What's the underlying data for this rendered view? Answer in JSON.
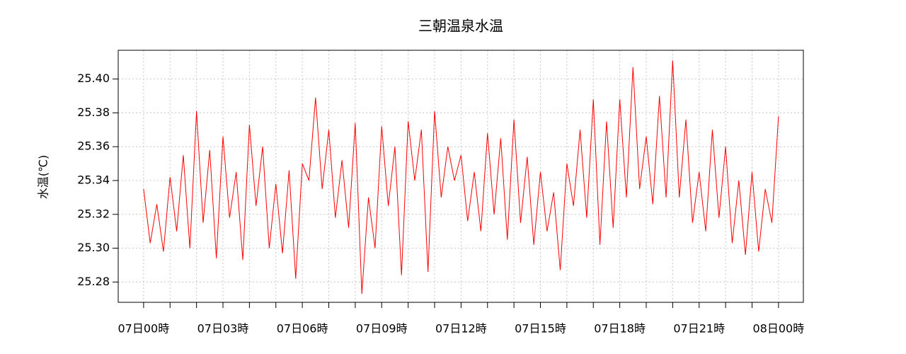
{
  "chart_data": {
    "type": "line",
    "title": "三朝温泉水温",
    "y_label": "水温(℃)",
    "x": [
      0,
      0.25,
      0.5,
      0.75,
      1,
      1.25,
      1.5,
      1.75,
      2,
      2.25,
      2.5,
      2.75,
      3,
      3.25,
      3.5,
      3.75,
      4,
      4.25,
      4.5,
      4.75,
      5,
      5.25,
      5.5,
      5.75,
      6,
      6.25,
      6.5,
      6.75,
      7,
      7.25,
      7.5,
      7.75,
      8,
      8.25,
      8.5,
      8.75,
      9,
      9.25,
      9.5,
      9.75,
      10,
      10.25,
      10.5,
      10.75,
      11,
      11.25,
      11.5,
      11.75,
      12,
      12.25,
      12.5,
      12.75,
      13,
      13.25,
      13.5,
      13.75,
      14,
      14.25,
      14.5,
      14.75,
      15,
      15.25,
      15.5,
      15.75,
      16,
      16.25,
      16.5,
      16.75,
      17,
      17.25,
      17.5,
      17.75,
      18,
      18.25,
      18.5,
      18.75,
      19,
      19.25,
      19.5,
      19.75,
      20,
      20.25,
      20.5,
      20.75,
      21,
      21.25,
      21.5,
      21.75,
      22,
      22.25,
      22.5,
      22.75,
      23,
      23.25,
      23.5,
      23.75,
      24
    ],
    "series": [
      {
        "name": "水温",
        "color": "#ff0000",
        "values": [
          25.335,
          25.303,
          25.326,
          25.298,
          25.342,
          25.31,
          25.355,
          25.3,
          25.381,
          25.315,
          25.358,
          25.294,
          25.366,
          25.318,
          25.345,
          25.293,
          25.373,
          25.325,
          25.36,
          25.3,
          25.338,
          25.297,
          25.346,
          25.282,
          25.35,
          25.34,
          25.389,
          25.335,
          25.37,
          25.318,
          25.352,
          25.312,
          25.374,
          25.273,
          25.33,
          25.3,
          25.372,
          25.325,
          25.36,
          25.284,
          25.375,
          25.34,
          25.37,
          25.286,
          25.381,
          25.33,
          25.36,
          25.34,
          25.355,
          25.316,
          25.345,
          25.31,
          25.368,
          25.32,
          25.365,
          25.305,
          25.376,
          25.315,
          25.354,
          25.302,
          25.345,
          25.31,
          25.333,
          25.287,
          25.35,
          25.325,
          25.37,
          25.318,
          25.388,
          25.302,
          25.375,
          25.312,
          25.388,
          25.33,
          25.407,
          25.335,
          25.366,
          25.326,
          25.39,
          25.33,
          25.411,
          25.33,
          25.376,
          25.315,
          25.345,
          25.31,
          25.37,
          25.318,
          25.36,
          25.303,
          25.34,
          25.296,
          25.345,
          25.298,
          25.335,
          25.315,
          25.378
        ]
      }
    ],
    "xlim": [
      -0.96,
      24.94
    ],
    "ylim": [
      25.268,
      25.417
    ],
    "xticks": [
      {
        "value": 0,
        "label": "07日00時"
      },
      {
        "value": 3,
        "label": "07日03時"
      },
      {
        "value": 6,
        "label": "07日06時"
      },
      {
        "value": 9,
        "label": "07日09時"
      },
      {
        "value": 12,
        "label": "07日12時"
      },
      {
        "value": 15,
        "label": "07日15時"
      },
      {
        "value": 18,
        "label": "07日18時"
      },
      {
        "value": 21,
        "label": "07日21時"
      },
      {
        "value": 24,
        "label": "08日00時"
      }
    ],
    "x_minor_ticks": [
      1,
      2,
      4,
      5,
      7,
      8,
      10,
      11,
      13,
      14,
      16,
      17,
      19,
      20,
      22,
      23
    ],
    "yticks": [
      25.28,
      {
        "value": 25.3,
        "label": "25.30"
      },
      25.32,
      25.34,
      25.36,
      25.38,
      {
        "value": 25.4,
        "label": "25.40"
      }
    ],
    "grid": true
  }
}
